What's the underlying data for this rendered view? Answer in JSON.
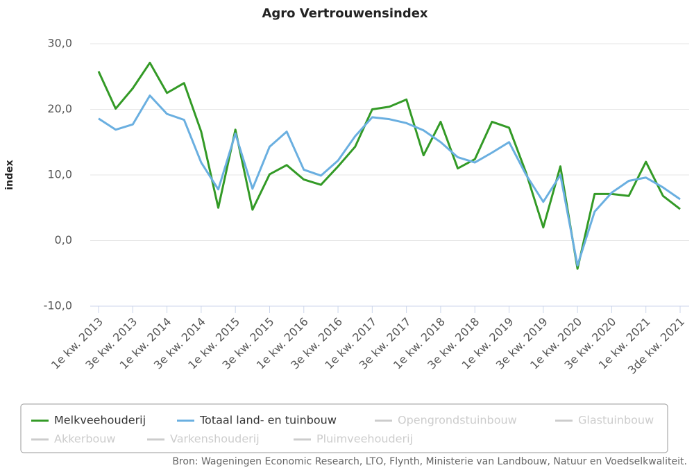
{
  "chart_data": {
    "type": "line",
    "title": "Agro Vertrouwensindex",
    "y_label": "index",
    "source": "Bron: Wageningen Economic Research, LTO, Flynth, Ministerie van Landbouw, Natuur en Voedselkwaliteit.",
    "categories": [
      "1e kw. 2013",
      null,
      "3e kw. 2013",
      null,
      "1e kw. 2014",
      null,
      "3e kw. 2014",
      null,
      "1e kw. 2015",
      null,
      "3e kw. 2015",
      null,
      "1e kw. 2016",
      null,
      "3e kw. 2016",
      null,
      "1e kw. 2017",
      null,
      "3e kw. 2017",
      null,
      "1e kw. 2018",
      null,
      "3e kw. 2018",
      null,
      "1e kw. 2019",
      null,
      "3e kw. 2019",
      null,
      "1e kw. 2020",
      null,
      "3e kw. 2020",
      null,
      "1e kw. 2021",
      null,
      "3de kw. 2021"
    ],
    "series": [
      {
        "name": "Melkveehouderij",
        "color": "#339a26",
        "visible": true,
        "values": [
          25.8,
          20.1,
          23.2,
          27.1,
          22.5,
          24.0,
          16.6,
          5.0,
          16.9,
          4.7,
          10.1,
          11.5,
          9.3,
          8.5,
          11.3,
          14.3,
          20.0,
          20.4,
          21.5,
          13.0,
          18.1,
          11.0,
          12.4,
          18.1,
          17.2,
          10.3,
          2.0,
          11.3,
          -4.3,
          7.1,
          7.1,
          6.8,
          12.0,
          6.8,
          4.8
        ]
      },
      {
        "name": "Totaal land- en tuinbouw",
        "color": "#6aafe0",
        "visible": true,
        "values": [
          18.6,
          16.9,
          17.7,
          22.1,
          19.3,
          18.4,
          11.9,
          7.8,
          16.3,
          7.9,
          14.3,
          16.6,
          10.8,
          9.9,
          12.2,
          15.9,
          18.8,
          18.5,
          17.9,
          16.8,
          15.0,
          12.7,
          11.9,
          13.4,
          15.0,
          10.0,
          5.9,
          10.0,
          -3.8,
          4.4,
          7.3,
          9.1,
          9.6,
          8.1,
          6.3
        ]
      },
      {
        "name": "Opengrondstuinbouw",
        "color": "#cccccc",
        "visible": false
      },
      {
        "name": "Glastuinbouw",
        "color": "#cccccc",
        "visible": false
      },
      {
        "name": "Akkerbouw",
        "color": "#cccccc",
        "visible": false
      },
      {
        "name": "Varkenshouderij",
        "color": "#cccccc",
        "visible": false
      },
      {
        "name": "Pluimveehouderij",
        "color": "#cccccc",
        "visible": false
      }
    ],
    "ylim": [
      -10,
      30
    ],
    "yticks": [
      {
        "value": -10,
        "label": "-10,0"
      },
      {
        "value": 0,
        "label": "0,0"
      },
      {
        "value": 10,
        "label": "10,0"
      },
      {
        "value": 20,
        "label": "20,0"
      },
      {
        "value": 30,
        "label": "30,0"
      }
    ],
    "grid": true
  }
}
